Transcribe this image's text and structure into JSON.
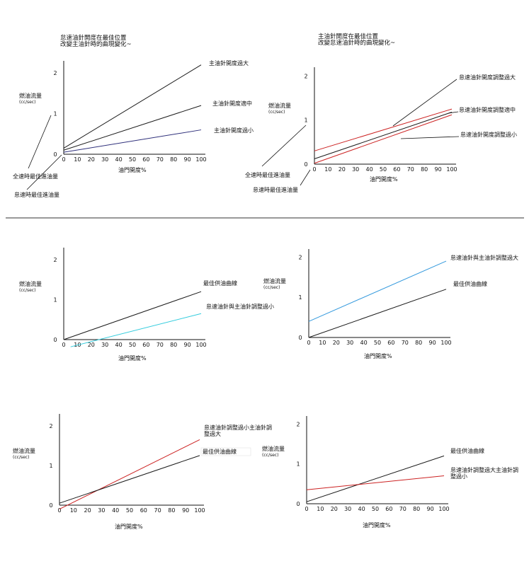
{
  "chart_data": [
    {
      "type": "line",
      "title": "怠速油針開度在最佳位置 改變主油針時的曲現變化~",
      "ylabel": "燃油流量",
      "yunit": "(cc/sec)",
      "xlabel": "油門開度%",
      "xticks": [
        "0",
        "10",
        "20",
        "30",
        "40",
        "50",
        "60",
        "70",
        "80",
        "90",
        "100"
      ],
      "yticks": [
        "0",
        "1",
        "2"
      ],
      "xlim": [
        0,
        100
      ],
      "ylim": [
        0,
        2.3
      ],
      "series": [
        {
          "name": "主油針開度過大",
          "color": "#1a1a1a",
          "x": [
            0,
            100
          ],
          "y": [
            0.15,
            2.2
          ]
        },
        {
          "name": "主油針開度適中",
          "color": "#1a1a1a",
          "x": [
            0,
            100
          ],
          "y": [
            0.1,
            1.2
          ]
        },
        {
          "name": "主油針開度過小",
          "color": "#2e2f7a",
          "x": [
            0,
            100
          ],
          "y": [
            0.05,
            0.6
          ]
        }
      ],
      "annotations": [
        "全速時最佳進油量",
        "怠速時最佳進油量"
      ]
    },
    {
      "type": "line",
      "title": "主油針開度在最佳位置 改變怠速油針時的曲現變化~",
      "ylabel": "燃油流量",
      "yunit": "(cc/sec)",
      "xlabel": "油門開度%",
      "xticks": [
        "0",
        "10",
        "20",
        "30",
        "40",
        "50",
        "60",
        "70",
        "80",
        "90",
        "100"
      ],
      "yticks": [
        "0",
        "1",
        "2"
      ],
      "xlim": [
        0,
        100
      ],
      "ylim": [
        0,
        2.2
      ],
      "series": [
        {
          "name": "怠速油針開度調整過大",
          "color": "#cc2222",
          "x": [
            0,
            100
          ],
          "y": [
            0.3,
            1.25
          ]
        },
        {
          "name": "怠速油針開度調整適中",
          "color": "#1a1a1a",
          "x": [
            0,
            100
          ],
          "y": [
            0.12,
            1.18
          ]
        },
        {
          "name": "怠速油針開度調整過小",
          "color": "#cc2222",
          "x": [
            0,
            100
          ],
          "y": [
            0.02,
            1.12
          ]
        }
      ],
      "annotations": [
        "全速時最佳進油量",
        "怠速時最佳進油量"
      ]
    },
    {
      "type": "line",
      "title": "",
      "ylabel": "燃油流量",
      "yunit": "(cc/sec)",
      "xlabel": "油門開度%",
      "xticks": [
        "0",
        "10",
        "20",
        "30",
        "40",
        "50",
        "60",
        "70",
        "80",
        "90",
        "100"
      ],
      "yticks": [
        "0",
        "1",
        "2"
      ],
      "xlim": [
        0,
        100
      ],
      "ylim": [
        0,
        2.3
      ],
      "series": [
        {
          "name": "最佳供油曲線",
          "color": "#1a1a1a",
          "x": [
            0,
            100
          ],
          "y": [
            0.0,
            1.2
          ]
        },
        {
          "name": "怠速油針與主油針調整過小",
          "color": "#33ccdd",
          "x": [
            5,
            100
          ],
          "y": [
            -0.18,
            0.65
          ]
        }
      ]
    },
    {
      "type": "line",
      "title": "",
      "ylabel": "燃油流量",
      "yunit": "(cc/sec)",
      "xlabel": "油門開度%",
      "xticks": [
        "0",
        "10",
        "20",
        "30",
        "40",
        "50",
        "60",
        "70",
        "80",
        "90",
        "100"
      ],
      "yticks": [
        "0",
        "1",
        "2"
      ],
      "xlim": [
        0,
        100
      ],
      "ylim": [
        0,
        2.2
      ],
      "series": [
        {
          "name": "怠速油針與主油針調整過大",
          "color": "#3399dd",
          "x": [
            0,
            100
          ],
          "y": [
            0.4,
            1.9
          ]
        },
        {
          "name": "最佳供油曲線",
          "color": "#1a1a1a",
          "x": [
            0,
            100
          ],
          "y": [
            0.0,
            1.2
          ]
        }
      ]
    },
    {
      "type": "line",
      "title": "",
      "ylabel": "燃油流量",
      "yunit": "(cc/sec)",
      "xlabel": "油門開度%",
      "xticks": [
        "0",
        "10",
        "20",
        "30",
        "40",
        "50",
        "60",
        "70",
        "80",
        "90",
        "100"
      ],
      "yticks": [
        "0",
        "1",
        "2"
      ],
      "xlim": [
        0,
        100
      ],
      "ylim": [
        0,
        2.3
      ],
      "series": [
        {
          "name": "怠速油針調整過小主油針調整過大",
          "color": "#cc2222",
          "x": [
            0,
            100
          ],
          "y": [
            -0.1,
            1.65
          ]
        },
        {
          "name": "最佳供油曲線",
          "color": "#1a1a1a",
          "x": [
            0,
            100
          ],
          "y": [
            0.05,
            1.25
          ]
        }
      ]
    },
    {
      "type": "line",
      "title": "",
      "ylabel": "燃油流量",
      "yunit": "(cc/sec)",
      "xlabel": "油門開度%",
      "xticks": [
        "0",
        "10",
        "20",
        "30",
        "40",
        "50",
        "60",
        "70",
        "80",
        "90",
        "100"
      ],
      "yticks": [
        "0",
        "1",
        "2"
      ],
      "xlim": [
        0,
        100
      ],
      "ylim": [
        0,
        2.2
      ],
      "series": [
        {
          "name": "最佳供油曲線",
          "color": "#1a1a1a",
          "x": [
            0,
            100
          ],
          "y": [
            0.05,
            1.2
          ]
        },
        {
          "name": "怠速油針調整過大主油針調整過小",
          "color": "#cc2222",
          "x": [
            0,
            100
          ],
          "y": [
            0.35,
            0.7
          ]
        }
      ]
    }
  ]
}
